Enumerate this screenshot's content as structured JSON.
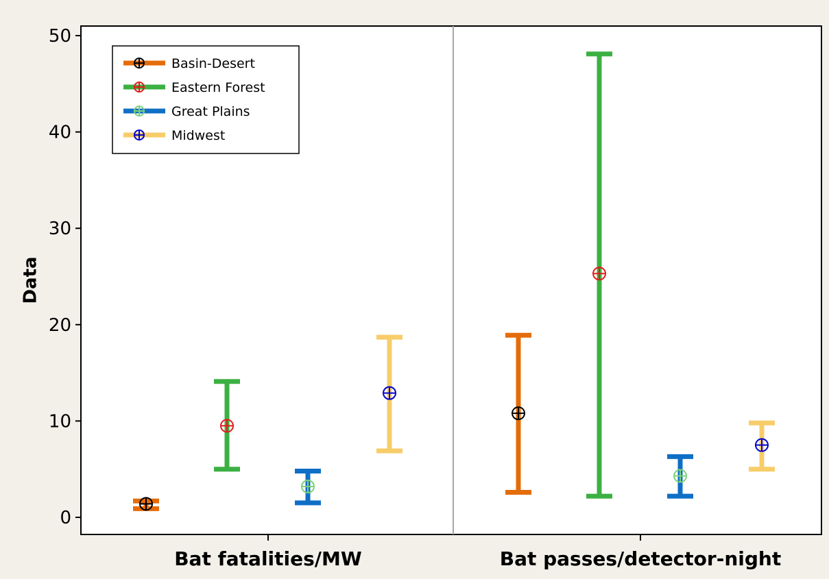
{
  "chart_data": {
    "type": "interval",
    "ylabel": "Data",
    "xlabel": "",
    "ylim": [
      -2,
      52
    ],
    "yticks": [
      0,
      10,
      20,
      30,
      40,
      50
    ],
    "categories": [
      "Bat fatalities/MW",
      "Bat passes/detector-night"
    ],
    "legend_position": "top-left",
    "grid": false,
    "series": [
      {
        "name": "Basin-Desert",
        "bar_color": "#E46C0A",
        "marker_color": "#000000",
        "mean": [
          1.4,
          10.8
        ],
        "lower": [
          0.9,
          2.6
        ],
        "upper": [
          1.7,
          18.9
        ]
      },
      {
        "name": "Eastern Forest",
        "bar_color": "#3CB043",
        "marker_color": "#E31A1C",
        "mean": [
          9.5,
          25.3
        ],
        "lower": [
          5.0,
          2.2
        ],
        "upper": [
          14.1,
          48.1
        ]
      },
      {
        "name": "Great Plains",
        "bar_color": "#0F6FC6",
        "marker_color": "#7ED07A",
        "mean": [
          3.2,
          4.3
        ],
        "lower": [
          1.5,
          2.2
        ],
        "upper": [
          4.8,
          6.3
        ]
      },
      {
        "name": "Midwest",
        "bar_color": "#F7CD6A",
        "marker_color": "#0000CC",
        "mean": [
          12.9,
          7.5
        ],
        "lower": [
          6.9,
          5.0
        ],
        "upper": [
          18.7,
          9.8
        ]
      }
    ]
  },
  "colors": {
    "outer_background": "#F2F0E9",
    "plot_background": "#FFFFFF",
    "panel_divider": "#A6A6A6"
  }
}
